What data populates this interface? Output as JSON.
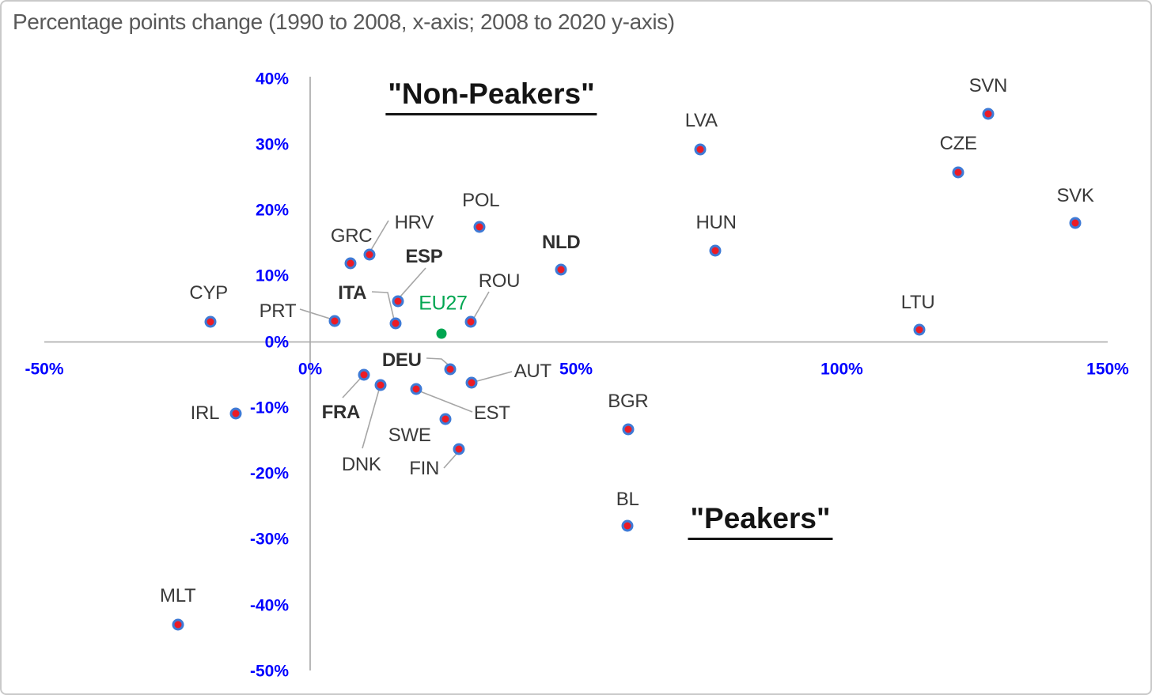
{
  "chart_data": {
    "type": "scatter",
    "title": "Percentage points change (1990 to 2008, x-axis; 2008 to 2020 y-axis)",
    "xlabel": "",
    "ylabel": "",
    "xlim": [
      -50,
      150
    ],
    "ylim": [
      -50,
      40
    ],
    "grid": false,
    "legend": "none",
    "x_ticks": [
      {
        "value": -50,
        "label": "-50%"
      },
      {
        "value": 0,
        "label": "0%"
      },
      {
        "value": 50,
        "label": "50%"
      },
      {
        "value": 100,
        "label": "100%"
      },
      {
        "value": 150,
        "label": "150%"
      }
    ],
    "y_ticks": [
      {
        "value": 40,
        "label": "40%"
      },
      {
        "value": 30,
        "label": "30%"
      },
      {
        "value": 20,
        "label": "20%"
      },
      {
        "value": 10,
        "label": "10%"
      },
      {
        "value": 0,
        "label": "0%"
      },
      {
        "value": -10,
        "label": "-10%"
      },
      {
        "value": -20,
        "label": "-20%"
      },
      {
        "value": -30,
        "label": "-30%"
      },
      {
        "value": -40,
        "label": "-40%"
      },
      {
        "value": -50,
        "label": "-50%"
      }
    ],
    "annotations": {
      "non_peakers": "\"Non-Peakers\"",
      "peakers": "\"Peakers\""
    },
    "colors": {
      "dot_fill": "#ec1b25",
      "dot_ring": "#3e7ad6",
      "eu27_green": "#00a651",
      "tick_text": "#0000ff",
      "label_text": "#3a3a3a",
      "axis_line": "#a6a6a6",
      "leader_line": "#a6a6a6",
      "title_text": "#595959",
      "annotation_text": "#141414"
    },
    "points": [
      {
        "code": "CYP",
        "x": -18.8,
        "y": 3.1,
        "bold": false,
        "marker": "red-ring"
      },
      {
        "code": "IRL",
        "x": -14.0,
        "y": -10.9,
        "bold": false,
        "marker": "red-ring"
      },
      {
        "code": "MLT",
        "x": -24.9,
        "y": -43.0,
        "bold": false,
        "marker": "red-ring"
      },
      {
        "code": "PRT",
        "x": 4.6,
        "y": 3.2,
        "bold": false,
        "marker": "red-ring"
      },
      {
        "code": "GRC",
        "x": 7.6,
        "y": 12.0,
        "bold": false,
        "marker": "red-ring"
      },
      {
        "code": "HRV",
        "x": 11.2,
        "y": 13.3,
        "bold": false,
        "marker": "red-ring"
      },
      {
        "code": "ITA",
        "x": 16.1,
        "y": 2.8,
        "bold": true,
        "marker": "red-ring"
      },
      {
        "code": "ESP",
        "x": 16.5,
        "y": 6.2,
        "bold": true,
        "marker": "red-ring"
      },
      {
        "code": "EU27",
        "x": 24.7,
        "y": 1.3,
        "bold": false,
        "marker": "green"
      },
      {
        "code": "ROU",
        "x": 30.2,
        "y": 3.1,
        "bold": false,
        "marker": "red-ring"
      },
      {
        "code": "POL",
        "x": 31.8,
        "y": 17.5,
        "bold": false,
        "marker": "red-ring"
      },
      {
        "code": "NLD",
        "x": 47.2,
        "y": 11.0,
        "bold": true,
        "marker": "red-ring"
      },
      {
        "code": "DEU",
        "x": 26.3,
        "y": -4.1,
        "bold": true,
        "marker": "red-ring"
      },
      {
        "code": "FRA",
        "x": 10.1,
        "y": -5.0,
        "bold": true,
        "marker": "red-ring"
      },
      {
        "code": "DNK",
        "x": 13.2,
        "y": -6.6,
        "bold": false,
        "marker": "red-ring"
      },
      {
        "code": "EST",
        "x": 19.9,
        "y": -7.2,
        "bold": false,
        "marker": "red-ring"
      },
      {
        "code": "AUT",
        "x": 30.4,
        "y": -6.2,
        "bold": false,
        "marker": "red-ring"
      },
      {
        "code": "SWE",
        "x": 25.4,
        "y": -11.7,
        "bold": false,
        "marker": "red-ring"
      },
      {
        "code": "FIN",
        "x": 28.0,
        "y": -16.3,
        "bold": false,
        "marker": "red-ring"
      },
      {
        "code": "BGR",
        "x": 59.8,
        "y": -13.3,
        "bold": false,
        "marker": "red-ring"
      },
      {
        "code": "BL",
        "x": 59.7,
        "y": -27.9,
        "bold": false,
        "marker": "red-ring"
      },
      {
        "code": "LVA",
        "x": 73.4,
        "y": 29.2,
        "bold": false,
        "marker": "red-ring"
      },
      {
        "code": "HUN",
        "x": 76.2,
        "y": 13.9,
        "bold": false,
        "marker": "red-ring"
      },
      {
        "code": "LTU",
        "x": 114.6,
        "y": 1.9,
        "bold": false,
        "marker": "red-ring"
      },
      {
        "code": "CZE",
        "x": 121.9,
        "y": 25.8,
        "bold": false,
        "marker": "red-ring"
      },
      {
        "code": "SVN",
        "x": 127.5,
        "y": 34.6,
        "bold": false,
        "marker": "red-ring"
      },
      {
        "code": "SVK",
        "x": 143.9,
        "y": 18.1,
        "bold": false,
        "marker": "red-ring"
      }
    ]
  }
}
